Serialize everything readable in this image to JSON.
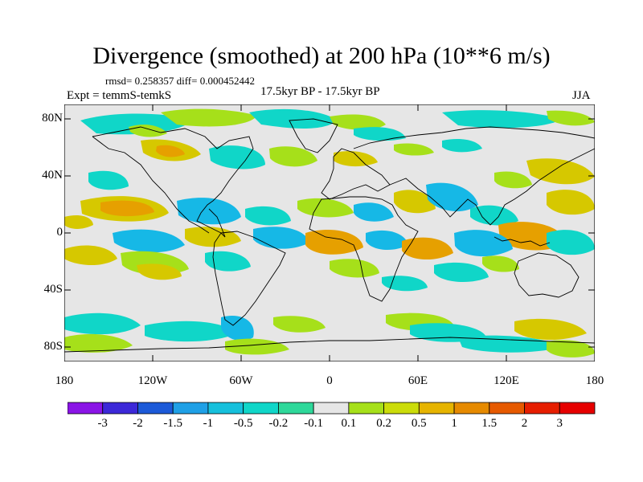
{
  "title": "Divergence (smoothed) at 200 hPa (10**6 m/s)",
  "stats": "rmsd= 0.258357  diff= 0.000452442",
  "expt": "Expt = temmS-temkS",
  "period": "17.5kyr BP - 17.5kyr BP",
  "season": "JJA",
  "map": {
    "lat_labels": [
      "80N",
      "40N",
      "0",
      "40S",
      "80S"
    ],
    "lon_labels": [
      "180",
      "120W",
      "60W",
      "0",
      "60E",
      "120E",
      "180"
    ],
    "lon_range": [
      -180,
      180
    ],
    "lat_range": [
      -90,
      90
    ]
  },
  "colorbar": {
    "labels": [
      "-3",
      "-2",
      "-1.5",
      "-1",
      "-0.5",
      "-0.2",
      "-0.1",
      "0.1",
      "0.2",
      "0.5",
      "1",
      "1.5",
      "2",
      "3"
    ],
    "colors": [
      "#8a14e6",
      "#3c28d8",
      "#1c5ad8",
      "#1fa0e6",
      "#16c0dc",
      "#10d6c8",
      "#2ed89a",
      "#e6e6e6",
      "#a6e01a",
      "#cbdc0a",
      "#e6b400",
      "#e68a00",
      "#e65a00",
      "#e61e00",
      "#e60000"
    ]
  },
  "legend": {
    "neg_strong": "#16b8e6",
    "neg_mid": "#10d6c8",
    "neg_weak": "#2ed89a",
    "pos_weak": "#a6e01a",
    "pos_mid": "#d6c800",
    "pos_strong": "#e6a000",
    "neutral": "#e6e6e6"
  }
}
